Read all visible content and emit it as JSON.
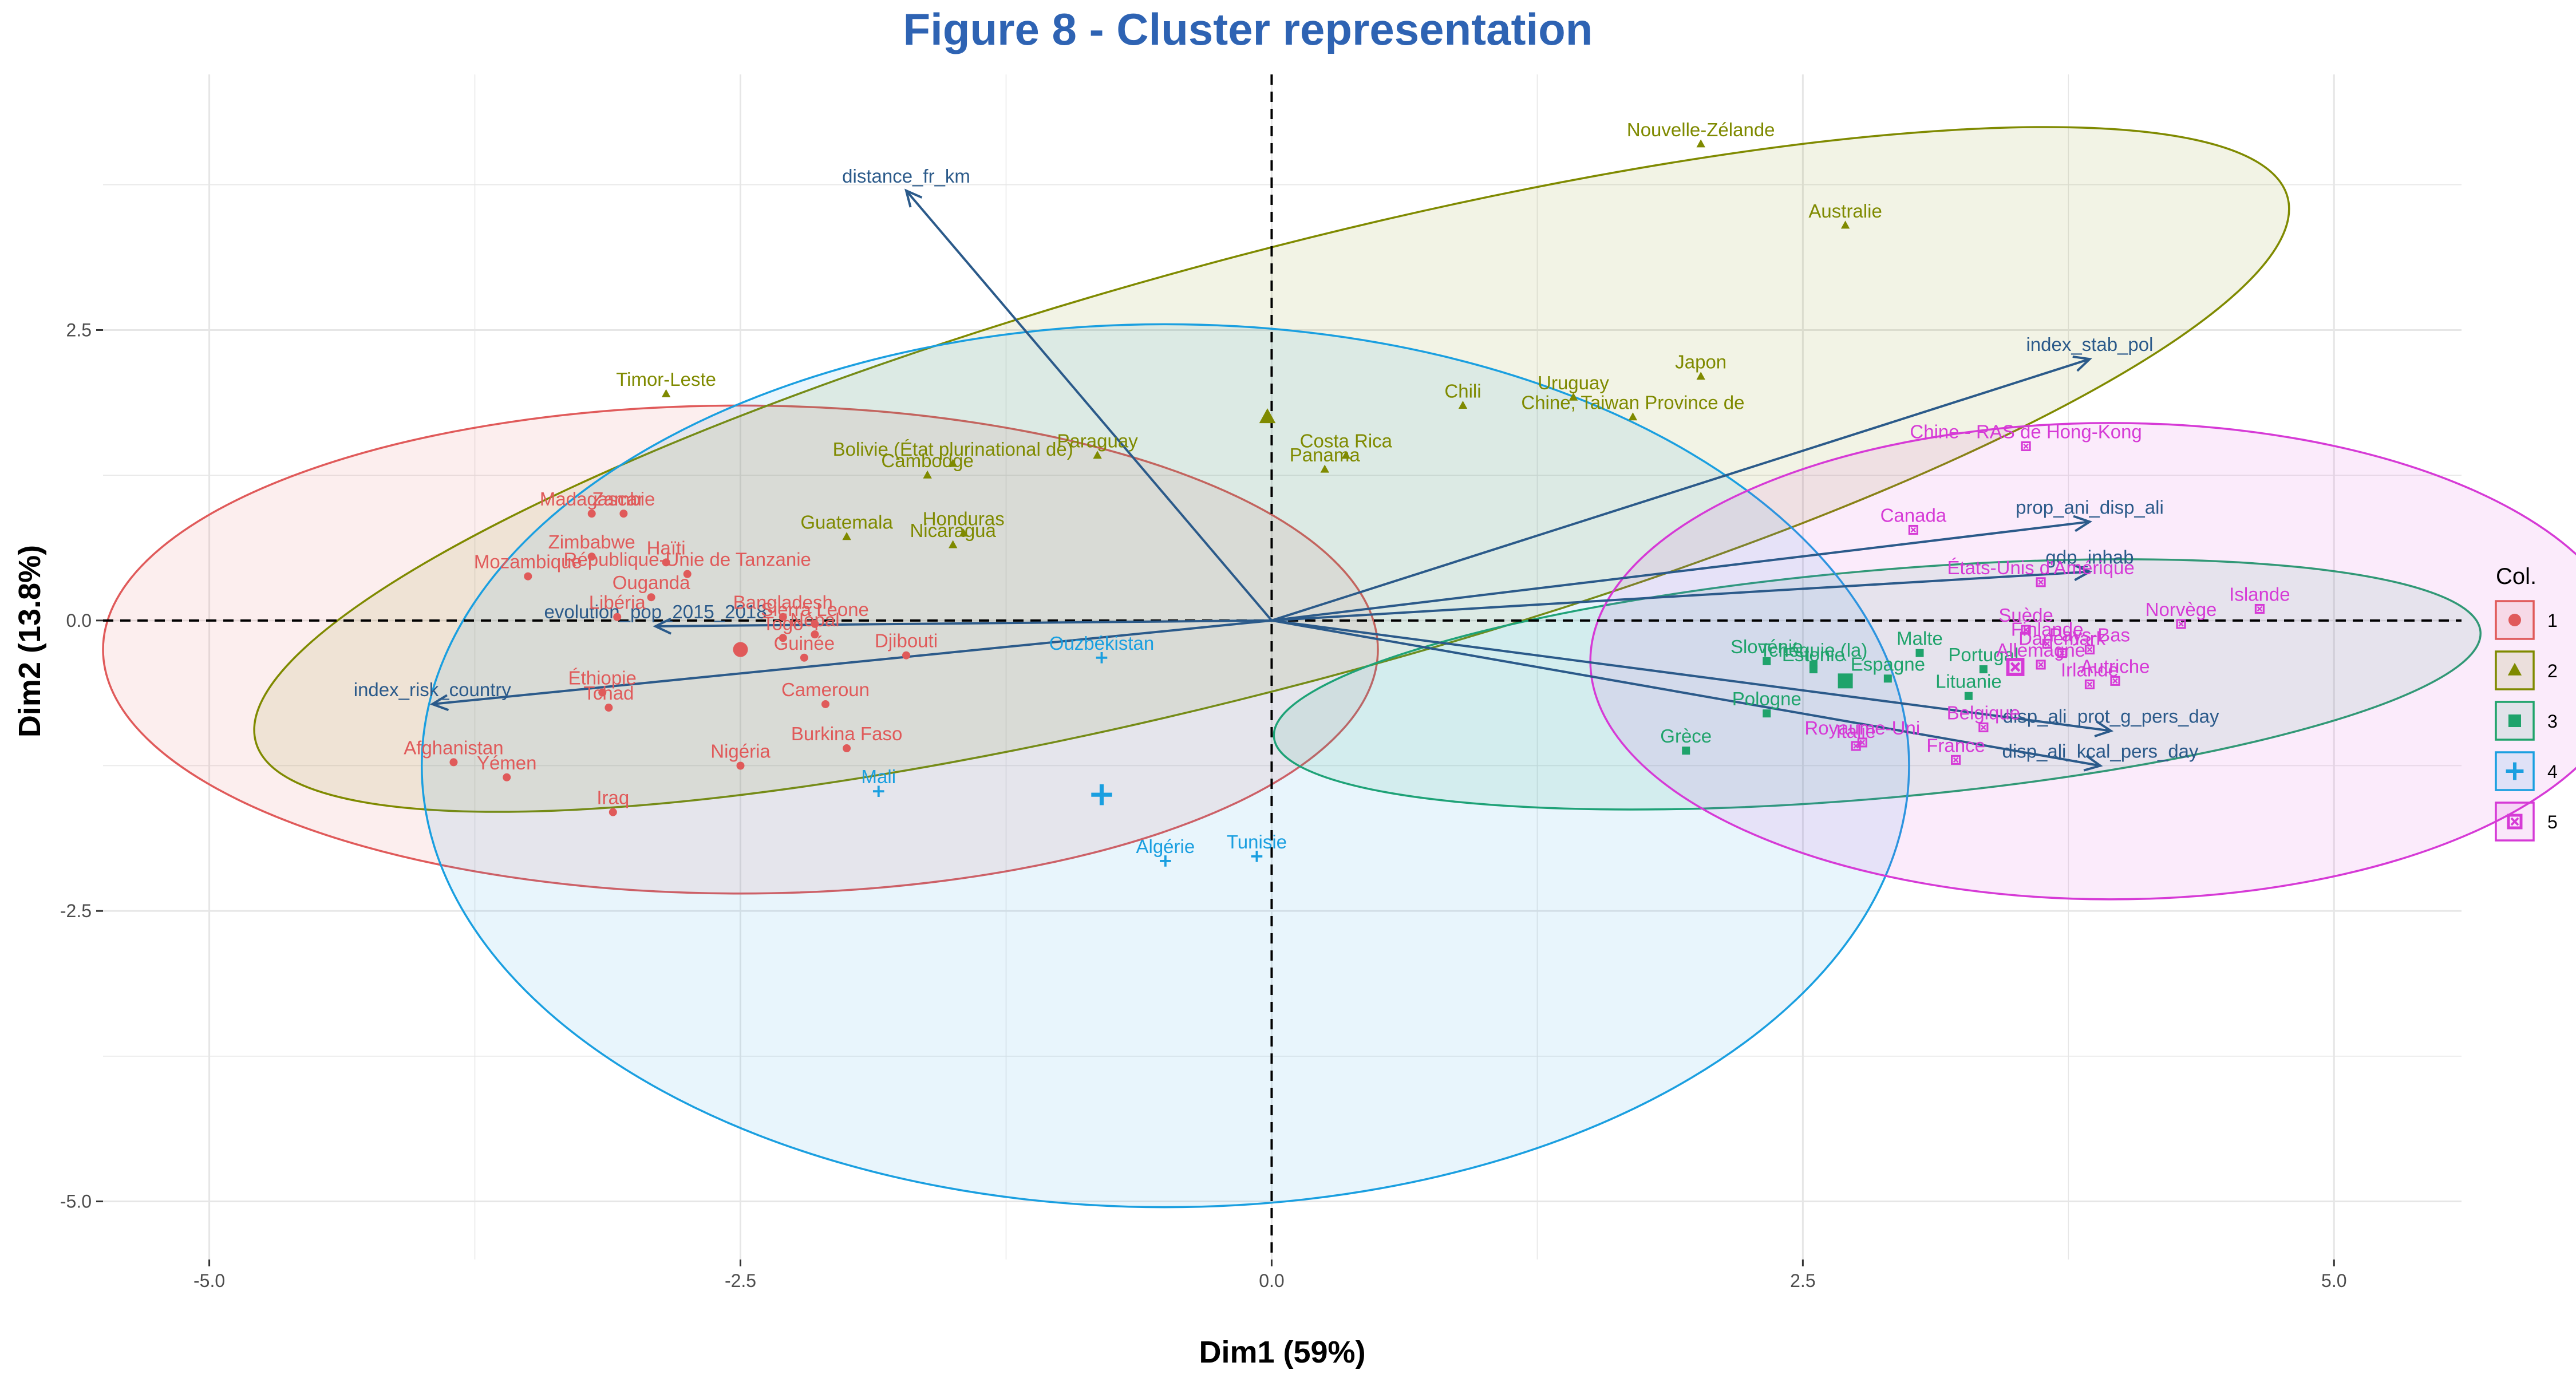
{
  "chart_data": {
    "type": "scatter",
    "title": "Figure 8 - Cluster representation",
    "xlabel": "Dim1 (59%)",
    "ylabel": "Dim2 (13.8%)",
    "xlim": [
      -5.5,
      5.6
    ],
    "ylim": [
      -5.5,
      4.7
    ],
    "xticks": [
      -5.0,
      -2.5,
      0.0,
      2.5,
      5.0
    ],
    "yticks": [
      -5.0,
      -2.5,
      0.0,
      2.5
    ],
    "xtick_labels": [
      "-5.0",
      "-2.5",
      "0.0",
      "2.5",
      "5.0"
    ],
    "ytick_labels": [
      "-5.0",
      "-2.5",
      "0.0",
      "2.5"
    ],
    "grid": true,
    "reference_lines": {
      "x": 0,
      "y": 0,
      "style": "dashed"
    },
    "legend": {
      "title": "Col.",
      "position": "right"
    },
    "clusters": [
      {
        "name": "1",
        "color": "#e05a5a",
        "marker": "circle",
        "centroid": [
          -2.5,
          -0.25
        ],
        "ellipse": {
          "cx": -2.5,
          "cy": -0.25,
          "rx": 3.0,
          "ry": 2.1,
          "angle": 0
        },
        "points": [
          {
            "label": "Madagascar",
            "x": -3.2,
            "y": 0.92
          },
          {
            "label": "Zambie",
            "x": -3.05,
            "y": 0.92
          },
          {
            "label": "Zimbabwe",
            "x": -3.2,
            "y": 0.55
          },
          {
            "label": "Haïti",
            "x": -2.85,
            "y": 0.5
          },
          {
            "label": "Mozambique",
            "x": -3.5,
            "y": 0.38
          },
          {
            "label": "République-Unie de Tanzanie",
            "x": -2.75,
            "y": 0.4
          },
          {
            "label": "Ouganda",
            "x": -2.92,
            "y": 0.2
          },
          {
            "label": "Libéria",
            "x": -3.08,
            "y": 0.03
          },
          {
            "label": "Bangladesh",
            "x": -2.3,
            "y": 0.03
          },
          {
            "label": "Sierra Leone",
            "x": -2.15,
            "y": -0.03
          },
          {
            "label": "Togo",
            "x": -2.3,
            "y": -0.15
          },
          {
            "label": "Népal",
            "x": -2.15,
            "y": -0.12
          },
          {
            "label": "Guinée",
            "x": -2.2,
            "y": -0.32
          },
          {
            "label": "Djibouti",
            "x": -1.72,
            "y": -0.3
          },
          {
            "label": "Éthiopie",
            "x": -3.15,
            "y": -0.62
          },
          {
            "label": "Tchad",
            "x": -3.12,
            "y": -0.75
          },
          {
            "label": "Cameroun",
            "x": -2.1,
            "y": -0.72
          },
          {
            "label": "Burkina Faso",
            "x": -2.0,
            "y": -1.1
          },
          {
            "label": "Nigéria",
            "x": -2.5,
            "y": -1.25
          },
          {
            "label": "Afghanistan",
            "x": -3.85,
            "y": -1.22
          },
          {
            "label": "Yémen",
            "x": -3.6,
            "y": -1.35
          },
          {
            "label": "Iraq",
            "x": -3.1,
            "y": -1.65
          }
        ]
      },
      {
        "name": "2",
        "color": "#7f8a00",
        "marker": "triangle",
        "centroid": [
          -0.02,
          1.75
        ],
        "ellipse": {
          "cx": 0.0,
          "cy": 1.3,
          "rx": 4.95,
          "ry": 1.85,
          "angle": 15
        },
        "points": [
          {
            "label": "Nouvelle-Zélande",
            "x": 2.02,
            "y": 4.1
          },
          {
            "label": "Australie",
            "x": 2.7,
            "y": 3.4
          },
          {
            "label": "Timor-Leste",
            "x": -2.85,
            "y": 1.95
          },
          {
            "label": "Chili",
            "x": 0.9,
            "y": 1.85
          },
          {
            "label": "Uruguay",
            "x": 1.42,
            "y": 1.92
          },
          {
            "label": "Japon",
            "x": 2.02,
            "y": 2.1
          },
          {
            "label": "Chine, Taiwan Province de",
            "x": 1.7,
            "y": 1.75
          },
          {
            "label": "Paraguay",
            "x": -0.82,
            "y": 1.42
          },
          {
            "label": "Costa Rica",
            "x": 0.35,
            "y": 1.42
          },
          {
            "label": "Panama",
            "x": 0.25,
            "y": 1.3
          },
          {
            "label": "Bolivie (État plurinational de)",
            "x": -1.5,
            "y": 1.35
          },
          {
            "label": "Cambodge",
            "x": -1.62,
            "y": 1.25
          },
          {
            "label": "Guatemala",
            "x": -2.0,
            "y": 0.72
          },
          {
            "label": "Honduras",
            "x": -1.45,
            "y": 0.75
          },
          {
            "label": "Nicaragua",
            "x": -1.5,
            "y": 0.65
          }
        ]
      },
      {
        "name": "3",
        "color": "#1fa36b",
        "marker": "square",
        "centroid": [
          2.7,
          -0.52
        ],
        "ellipse": {
          "cx": 2.85,
          "cy": -0.55,
          "rx": 2.85,
          "ry": 0.98,
          "angle": 5
        },
        "points": [
          {
            "label": "Tchéquie (la)",
            "x": 2.55,
            "y": -0.38
          },
          {
            "label": "Slovénie",
            "x": 2.33,
            "y": -0.35
          },
          {
            "label": "Estonie",
            "x": 2.55,
            "y": -0.42
          },
          {
            "label": "Malte",
            "x": 3.05,
            "y": -0.28
          },
          {
            "label": "Espagne",
            "x": 2.9,
            "y": -0.5
          },
          {
            "label": "Portugal",
            "x": 3.35,
            "y": -0.42
          },
          {
            "label": "Lituanie",
            "x": 3.28,
            "y": -0.65
          },
          {
            "label": "Pologne",
            "x": 2.33,
            "y": -0.8
          },
          {
            "label": "Grèce",
            "x": 1.95,
            "y": -1.12
          }
        ]
      },
      {
        "name": "4",
        "color": "#1a9fe0",
        "marker": "cross",
        "centroid": [
          -0.8,
          -1.5
        ],
        "ellipse": {
          "cx": -0.5,
          "cy": -1.25,
          "rx": 3.5,
          "ry": 3.8,
          "angle": 0
        },
        "points": [
          {
            "label": "Ouzbékistan",
            "x": -0.8,
            "y": -0.32
          },
          {
            "label": "Mali",
            "x": -1.85,
            "y": -1.47
          },
          {
            "label": "Algérie",
            "x": -0.5,
            "y": -2.07
          },
          {
            "label": "Tunisie",
            "x": -0.07,
            "y": -2.03
          }
        ]
      },
      {
        "name": "5",
        "color": "#d63ad6",
        "marker": "square-x",
        "centroid": [
          3.5,
          -0.4
        ],
        "ellipse": {
          "cx": 3.95,
          "cy": -0.35,
          "rx": 2.45,
          "ry": 2.05,
          "angle": 0
        },
        "points": [
          {
            "label": "Chine - RAS de Hong-Kong",
            "x": 3.55,
            "y": 1.5
          },
          {
            "label": "Canada",
            "x": 3.02,
            "y": 0.78
          },
          {
            "label": "États-Unis d'Amérique",
            "x": 3.62,
            "y": 0.33
          },
          {
            "label": "Islande",
            "x": 4.65,
            "y": 0.1
          },
          {
            "label": "Norvège",
            "x": 4.28,
            "y": -0.03
          },
          {
            "label": "Suède",
            "x": 3.55,
            "y": -0.08
          },
          {
            "label": "Finlande",
            "x": 3.65,
            "y": -0.2
          },
          {
            "label": "Danemark",
            "x": 3.72,
            "y": -0.28
          },
          {
            "label": "Pays-Bas",
            "x": 3.85,
            "y": -0.25
          },
          {
            "label": "Allemagne",
            "x": 3.62,
            "y": -0.38
          },
          {
            "label": "Irlande",
            "x": 3.85,
            "y": -0.55
          },
          {
            "label": "Autriche",
            "x": 3.97,
            "y": -0.52
          },
          {
            "label": "Belgique",
            "x": 3.35,
            "y": -0.92
          },
          {
            "label": "Royaume-Uni",
            "x": 2.78,
            "y": -1.05
          },
          {
            "label": "Italie",
            "x": 2.75,
            "y": -1.08
          },
          {
            "label": "France",
            "x": 3.22,
            "y": -1.2
          }
        ]
      }
    ],
    "variables": [
      {
        "label": "distance_fr_km",
        "x": -1.72,
        "y": 3.7
      },
      {
        "label": "index_stab_pol",
        "x": 3.85,
        "y": 2.25
      },
      {
        "label": "prop_ani_disp_ali",
        "x": 3.85,
        "y": 0.85
      },
      {
        "label": "gdp_inhab",
        "x": 3.85,
        "y": 0.42
      },
      {
        "label": "evolution_pop_2015_2018",
        "x": -2.9,
        "y": -0.05
      },
      {
        "label": "index_risk_country",
        "x": -3.95,
        "y": -0.72
      },
      {
        "label": "disp_ali_prot_g_pers_day",
        "x": 3.95,
        "y": -0.95
      },
      {
        "label": "disp_ali_kcal_pers_day",
        "x": 3.9,
        "y": -1.25
      }
    ]
  }
}
